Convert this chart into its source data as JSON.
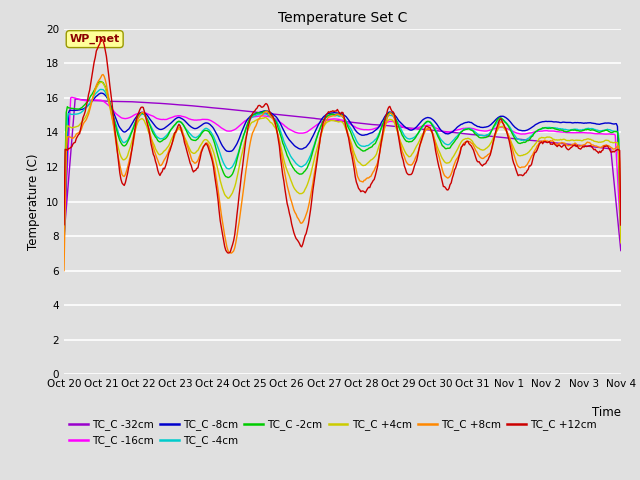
{
  "title": "Temperature Set C",
  "xlabel": "Time",
  "ylabel": "Temperature (C)",
  "ylim": [
    0,
    20
  ],
  "yticks": [
    0,
    2,
    4,
    6,
    8,
    10,
    12,
    14,
    16,
    18,
    20
  ],
  "background_color": "#e0e0e0",
  "plot_bg_color": "#e0e0e0",
  "grid_color": "#ffffff",
  "series_colors": {
    "TC_C -32cm": "#9900cc",
    "TC_C -16cm": "#ff00ff",
    "TC_C -8cm": "#0000cc",
    "TC_C -4cm": "#00cccc",
    "TC_C -2cm": "#00cc00",
    "TC_C +4cm": "#cccc00",
    "TC_C +8cm": "#ff8800",
    "TC_C +12cm": "#cc0000"
  },
  "wp_met_box_color": "#ffff99",
  "wp_met_text_color": "#8b0000",
  "date_labels": [
    "Oct 20",
    "Oct 21",
    "Oct 22",
    "Oct 23",
    "Oct 24",
    "Oct 25",
    "Oct 26",
    "Oct 27",
    "Oct 28",
    "Oct 29",
    "Oct 30",
    "Oct 31",
    "Nov 1",
    "Nov 2",
    "Nov 3",
    "Nov 4"
  ],
  "n_points": 500
}
